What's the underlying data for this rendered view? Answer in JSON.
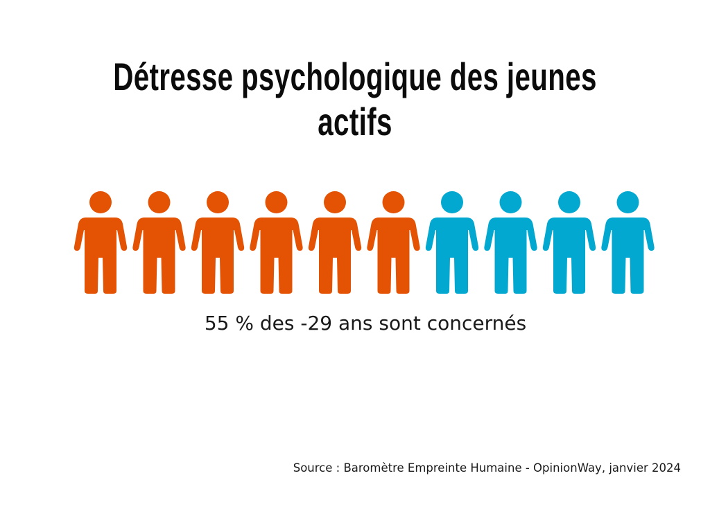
{
  "title": "Détresse psychologique des jeunes actifs",
  "caption": "55 % des -29 ans sont concernés",
  "source": "Source : Baromètre Empreinte Humaine - OpinionWay, janvier 2024",
  "colors": {
    "highlight": "#e45204",
    "rest": "#02a8d0"
  },
  "chart_data": {
    "type": "pictogram",
    "total_icons": 10,
    "highlighted_icons": 6,
    "value_percent": 55,
    "icon": "person-icon"
  }
}
